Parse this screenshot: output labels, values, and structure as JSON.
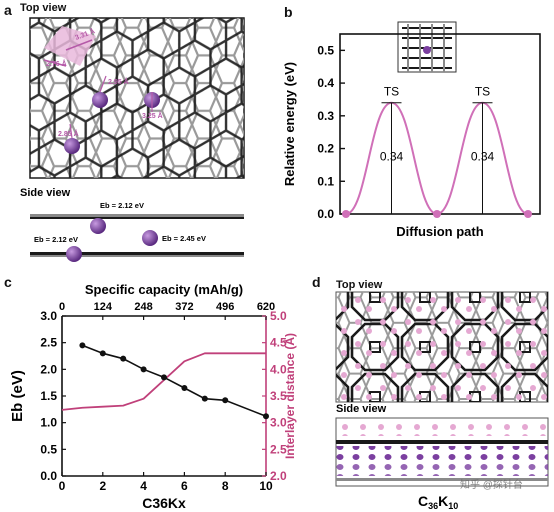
{
  "panel_a": {
    "label": "a",
    "top_view_title": "Top view",
    "side_view_title": "Side view",
    "distances": [
      "3.31 Å",
      "2.76 Å",
      "2.95 Å",
      "3.25 Å",
      "2.85 Å"
    ],
    "side_energies": [
      "Eb = 2.12 eV",
      "Eb = 2.12 eV",
      "Eb = 2.45 eV"
    ],
    "colors": {
      "atom": "#7b3fa0",
      "accent": "#d070b8",
      "lattice_dark": "#1a1a1a",
      "lattice_light": "#9a9a9a"
    }
  },
  "panel_b": {
    "label": "b",
    "chart_data": {
      "type": "line",
      "xlabel": "Diffusion path",
      "ylabel": "Relative energy (eV)",
      "ylim": [
        0,
        0.55
      ],
      "yticks": [
        "0.0",
        "0.1",
        "0.2",
        "0.3",
        "0.4",
        "0.5"
      ],
      "x": [
        0,
        1,
        2,
        3,
        4
      ],
      "series": [
        {
          "values": [
            0.0,
            0.34,
            0.0,
            0.34,
            0.0
          ]
        }
      ],
      "annotations": [
        "TS",
        "TS",
        "0.34",
        "0.34"
      ],
      "color": "#d070b8"
    }
  },
  "panel_c": {
    "label": "c",
    "chart_data": {
      "type": "line",
      "title": "",
      "xlabel": "C36Kx",
      "ylabel_left": "Eb (eV)",
      "ylabel_right": "Interlayer distance (Å)",
      "xlabel_top": "Specific capacity (mAh/g)",
      "xlim": [
        0,
        10
      ],
      "ylim_left": [
        0.0,
        3.0
      ],
      "ylim_right": [
        2.0,
        5.0
      ],
      "xticks": [
        "0",
        "2",
        "4",
        "6",
        "8",
        "10"
      ],
      "xticks_top": [
        "0",
        "124",
        "248",
        "372",
        "496",
        "620"
      ],
      "yticks_left": [
        "0.0",
        "0.5",
        "1.0",
        "1.5",
        "2.0",
        "2.5",
        "3.0"
      ],
      "yticks_right": [
        "2.0",
        "2.5",
        "3.0",
        "3.5",
        "4.0",
        "4.5",
        "5.0"
      ],
      "series": [
        {
          "axis": "left",
          "color": "#111111",
          "x": [
            1,
            2,
            3,
            4,
            5,
            6,
            7,
            8,
            10
          ],
          "values": [
            2.45,
            2.3,
            2.2,
            2.0,
            1.85,
            1.65,
            1.45,
            1.42,
            1.12
          ]
        },
        {
          "axis": "right",
          "color": "#c0407a",
          "x": [
            0,
            1,
            2,
            3,
            4,
            5,
            6,
            7,
            8,
            9,
            10
          ],
          "values": [
            3.24,
            3.28,
            3.3,
            3.32,
            3.45,
            3.8,
            4.15,
            4.3,
            4.3,
            4.3,
            4.3
          ]
        }
      ]
    }
  },
  "panel_d": {
    "label": "d",
    "top_view_title": "Top view",
    "side_view_title": "Side view",
    "formula_base": "C",
    "formula_c_sub": "36",
    "formula_k": "K",
    "formula_k_sub": "10",
    "watermark": "知乎 @探针台"
  }
}
